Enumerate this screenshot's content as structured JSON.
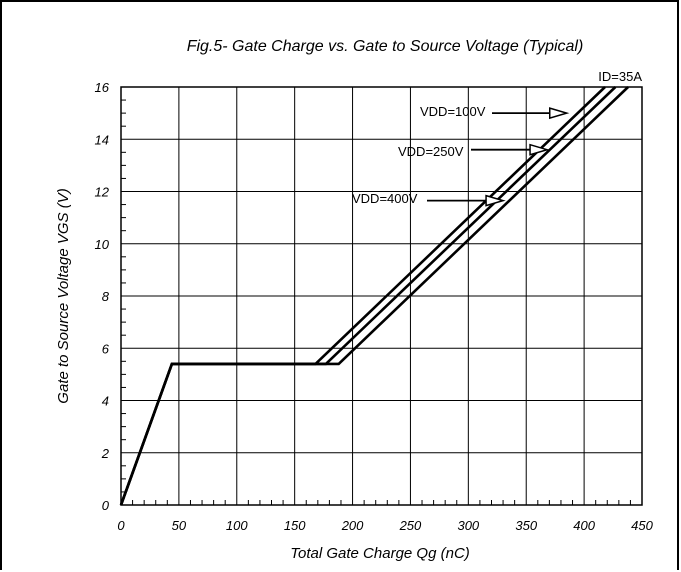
{
  "chart_data": {
    "type": "line",
    "title": "Fig.5- Gate Charge vs. Gate to Source Voltage (Typical)",
    "xlabel": "Total Gate Charge Qg (nC)",
    "ylabel": "Gate to Source Voltage VGS (V)",
    "xlim": [
      0,
      450
    ],
    "ylim": [
      0,
      16
    ],
    "xticks": [
      0,
      50,
      100,
      150,
      200,
      250,
      300,
      350,
      400,
      450
    ],
    "yticks": [
      0,
      2,
      4,
      6,
      8,
      10,
      12,
      14,
      16
    ],
    "grid": true,
    "condition": "ID=35A",
    "series": [
      {
        "name": "VDD=100V",
        "x": [
          0,
          44,
          168,
          418
        ],
        "y": [
          0,
          5.4,
          5.4,
          16
        ]
      },
      {
        "name": "VDD=250V",
        "x": [
          0,
          44,
          177,
          427
        ],
        "y": [
          0,
          5.4,
          5.4,
          16
        ]
      },
      {
        "name": "VDD=400V",
        "x": [
          0,
          44,
          188,
          438
        ],
        "y": [
          0,
          5.4,
          5.4,
          16
        ]
      }
    ],
    "annotations": [
      {
        "text": "VDD=100V",
        "series": 0,
        "arrow_to": [
          385,
          15.0
        ]
      },
      {
        "text": "VDD=250V",
        "series": 1,
        "arrow_to": [
          368,
          13.6
        ]
      },
      {
        "text": "VDD=400V",
        "series": 2,
        "arrow_to": [
          330,
          11.65
        ]
      }
    ]
  }
}
